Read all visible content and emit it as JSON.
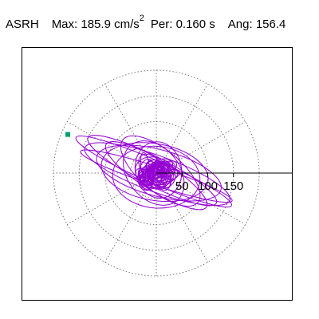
{
  "header": {
    "station": "ASRH",
    "max_label": "Max:",
    "max_value": "185.9",
    "max_unit": "cm/s",
    "max_unit_exp": "2",
    "per_label": "Per:",
    "per_value": "0.160 s",
    "ang_label": "Ang:",
    "ang_value": "156.4"
  },
  "chart_data": {
    "type": "polar-particle-motion",
    "title": "",
    "radial_ticks": [
      "50",
      "100",
      "150"
    ],
    "radial_tick_values": [
      50,
      100,
      150
    ],
    "radial_max": 200,
    "spokes_deg": [
      0,
      30,
      60,
      90,
      120,
      150,
      180,
      210,
      240,
      270,
      300,
      330
    ],
    "peak_angle_deg": 156.4,
    "peak_value": 185.9,
    "marker_point": {
      "x": -172,
      "y": 75
    },
    "trace_color": "#9400d3",
    "marker_color": "#00a070",
    "grid": "dotted",
    "orbits": [
      {
        "a": 165,
        "b": 22,
        "rot_deg": 156.4,
        "cx": -5,
        "cy": 3
      },
      {
        "a": 150,
        "b": 35,
        "rot_deg": 160,
        "cx": 2,
        "cy": -2
      },
      {
        "a": 140,
        "b": 28,
        "rot_deg": 153,
        "cx": -8,
        "cy": 5
      },
      {
        "a": 125,
        "b": 45,
        "rot_deg": 165,
        "cx": 5,
        "cy": 0
      },
      {
        "a": 115,
        "b": 30,
        "rot_deg": 148,
        "cx": 0,
        "cy": -5
      },
      {
        "a": 105,
        "b": 55,
        "rot_deg": 170,
        "cx": -3,
        "cy": 2
      },
      {
        "a": 95,
        "b": 40,
        "rot_deg": 140,
        "cx": 8,
        "cy": 4
      },
      {
        "a": 85,
        "b": 60,
        "rot_deg": 175,
        "cx": 0,
        "cy": -8
      },
      {
        "a": 70,
        "b": 50,
        "rot_deg": 130,
        "cx": -5,
        "cy": 0
      },
      {
        "a": 55,
        "b": 45,
        "rot_deg": 100,
        "cx": 4,
        "cy": 6
      },
      {
        "a": 40,
        "b": 30,
        "rot_deg": 160,
        "cx": -2,
        "cy": 0
      },
      {
        "a": 155,
        "b": 18,
        "rot_deg": 162,
        "cx": 0,
        "cy": -6
      }
    ]
  }
}
